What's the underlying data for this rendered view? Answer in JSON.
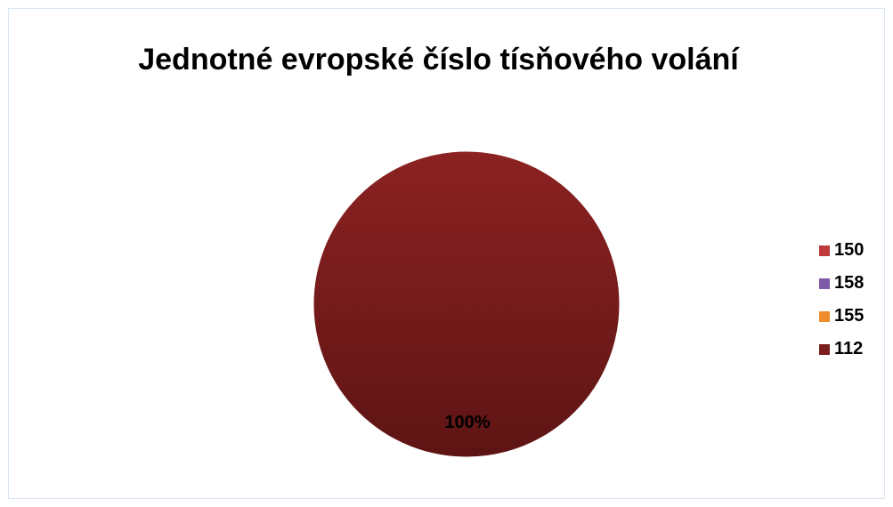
{
  "chart_data": {
    "type": "pie",
    "title": "Jednotné evropské číslo tísňového volání",
    "categories": [
      "150",
      "158",
      "155",
      "112"
    ],
    "values": [
      0,
      0,
      0,
      100
    ],
    "data_labels": [
      "",
      "",
      "",
      "100%"
    ],
    "colors": [
      "#c0393b",
      "#7e5aa8",
      "#f08c2c",
      "#7a1e1e"
    ],
    "legend_position": "right"
  }
}
